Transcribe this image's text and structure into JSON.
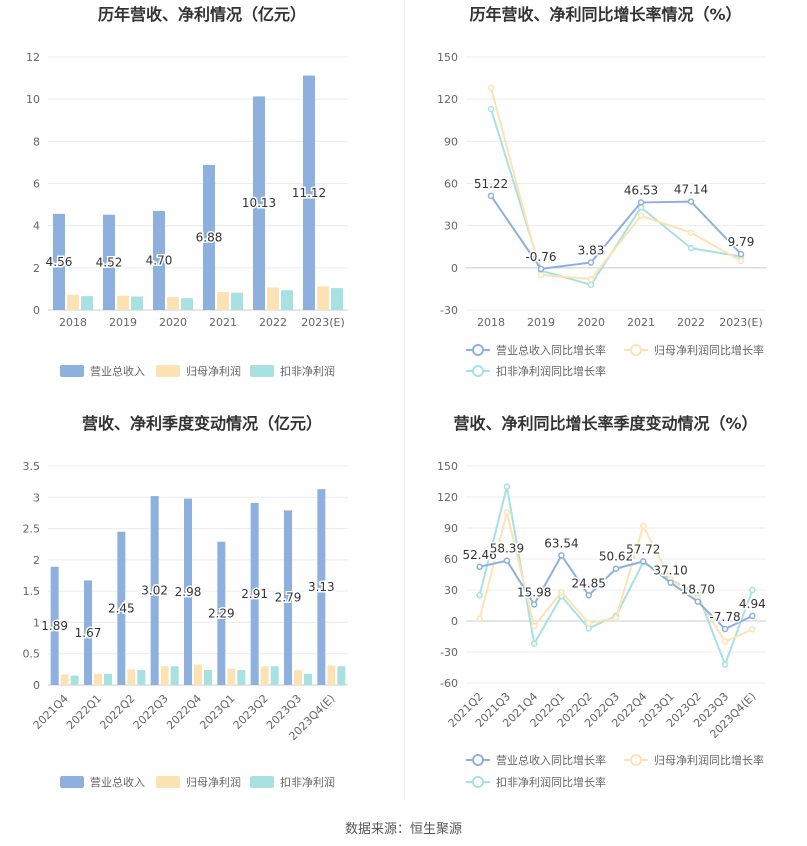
{
  "footer": {
    "source": "数据来源：恒生聚源"
  },
  "chart_data": [
    {
      "type": "bar",
      "title": "历年营收、净利情况（亿元）",
      "categories": [
        "2018",
        "2019",
        "2020",
        "2021",
        "2022",
        "2023(E)"
      ],
      "series": [
        {
          "name": "营业总收入",
          "values": [
            4.56,
            4.52,
            4.7,
            6.88,
            10.13,
            11.12
          ],
          "color": "#8eb0de"
        },
        {
          "name": "归母净利润",
          "values": [
            0.72,
            0.68,
            0.62,
            0.85,
            1.07,
            1.12
          ],
          "color": "#fde3b4"
        },
        {
          "name": "扣非净利润",
          "values": [
            0.66,
            0.64,
            0.56,
            0.82,
            0.94,
            1.04
          ],
          "color": "#a7e1e1"
        }
      ],
      "data_labels": [
        "4.56",
        "4.52",
        "4.70",
        "6.88",
        "10.13",
        "11.12"
      ],
      "yticks": [
        "0",
        "2",
        "4",
        "6",
        "8",
        "10",
        "12"
      ],
      "ylim": [
        0,
        12
      ],
      "grid": true,
      "legend": "bottom"
    },
    {
      "type": "line",
      "title": "历年营收、净利同比增长率情况（%）",
      "categories": [
        "2018",
        "2019",
        "2020",
        "2021",
        "2022",
        "2023(E)"
      ],
      "series": [
        {
          "name": "营业总收入同比增长率",
          "values": [
            51.22,
            -0.76,
            3.83,
            46.53,
            47.14,
            9.79
          ],
          "color": "#8eb0de"
        },
        {
          "name": "归母净利润同比增长率",
          "values": [
            128,
            -5,
            -8,
            37,
            25,
            5
          ],
          "color": "#fde3b4"
        },
        {
          "name": "扣非净利润同比增长率",
          "values": [
            113,
            -2,
            -12,
            43,
            14,
            8
          ],
          "color": "#a7e1e1"
        }
      ],
      "data_labels": [
        "51.22",
        "-0.76",
        "3.83",
        "46.53",
        "47.14",
        "9.79"
      ],
      "yticks": [
        "-30",
        "0",
        "30",
        "60",
        "90",
        "120",
        "150"
      ],
      "ylim": [
        -30,
        150
      ],
      "grid": true,
      "legend": "bottom"
    },
    {
      "type": "bar",
      "title": "营收、净利季度变动情况（亿元）",
      "categories": [
        "2021Q4",
        "2022Q1",
        "2022Q2",
        "2022Q3",
        "2022Q4",
        "2023Q1",
        "2023Q2",
        "2023Q3",
        "2023Q4(E)"
      ],
      "series": [
        {
          "name": "营业总收入",
          "values": [
            1.89,
            1.67,
            2.45,
            3.02,
            2.98,
            2.29,
            2.91,
            2.79,
            3.13
          ],
          "color": "#8eb0de"
        },
        {
          "name": "归母净利润",
          "values": [
            0.17,
            0.18,
            0.25,
            0.3,
            0.33,
            0.26,
            0.3,
            0.24,
            0.31
          ],
          "color": "#fde3b4"
        },
        {
          "name": "扣非净利润",
          "values": [
            0.15,
            0.18,
            0.24,
            0.3,
            0.24,
            0.24,
            0.3,
            0.18,
            0.3
          ],
          "color": "#a7e1e1"
        }
      ],
      "data_labels": [
        "1.89",
        "1.67",
        "2.45",
        "3.02",
        "2.98",
        "2.29",
        "2.91",
        "2.79",
        "3.13"
      ],
      "yticks": [
        "0",
        "0.5",
        "1",
        "1.5",
        "2",
        "2.5",
        "3",
        "3.5"
      ],
      "ylim": [
        0,
        3.5
      ],
      "grid": true,
      "legend": "bottom"
    },
    {
      "type": "line",
      "title": "营收、净利同比增长率季度变动情况（%）",
      "categories": [
        "2021Q2",
        "2021Q3",
        "2021Q4",
        "2022Q1",
        "2022Q2",
        "2022Q3",
        "2022Q4",
        "2023Q1",
        "2023Q2",
        "2023Q3",
        "2023Q4(E)"
      ],
      "series": [
        {
          "name": "营业总收入同比增长率",
          "values": [
            52.46,
            58.39,
            15.98,
            63.54,
            24.85,
            50.62,
            57.72,
            37.1,
            18.7,
            -7.78,
            4.94
          ],
          "color": "#8eb0de"
        },
        {
          "name": "归母净利润同比增长率",
          "values": [
            2,
            105,
            -5,
            28,
            -2,
            3,
            92,
            40,
            22,
            -20,
            -8
          ],
          "color": "#fde3b4"
        },
        {
          "name": "扣非净利润同比增长率",
          "values": [
            25,
            130,
            -22,
            24,
            -7,
            5,
            57,
            40,
            26,
            -42,
            30
          ],
          "color": "#a7e1e1"
        }
      ],
      "data_labels": [
        "52.46",
        "58.39",
        "15.98",
        "63.54",
        "24.85",
        "50.62",
        "57.72",
        "37.10",
        "18.70",
        "-7.78",
        "4.94"
      ],
      "yticks": [
        "-60",
        "-30",
        "0",
        "30",
        "60",
        "90",
        "120",
        "150"
      ],
      "ylim": [
        -60,
        150
      ],
      "grid": true,
      "legend": "bottom"
    }
  ]
}
